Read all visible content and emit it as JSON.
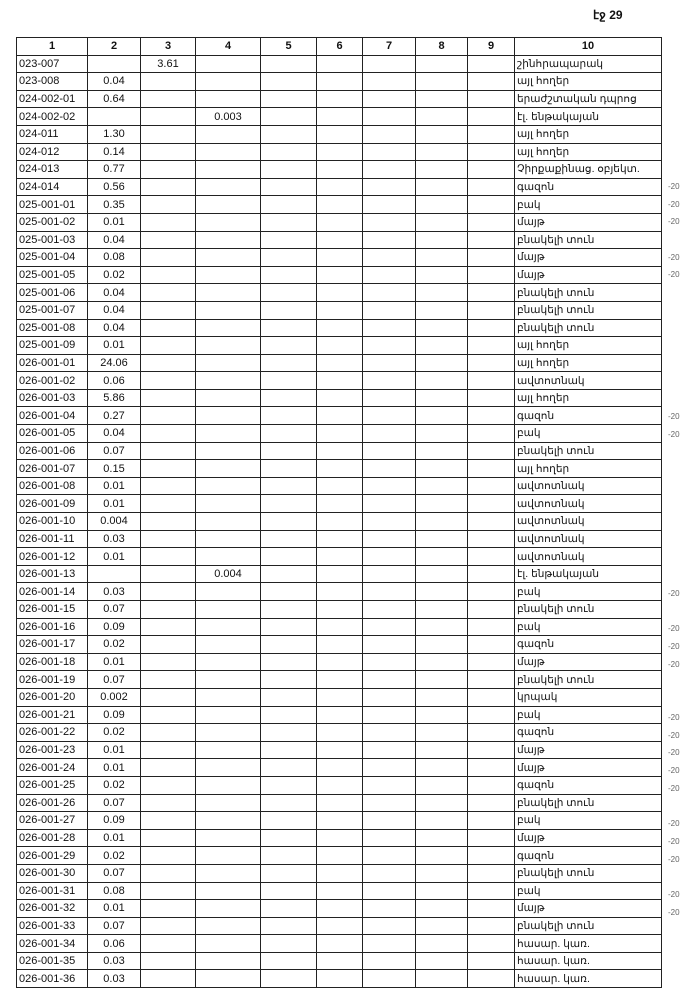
{
  "page_label": "էջ 29",
  "headers": [
    "1",
    "2",
    "3",
    "4",
    "5",
    "6",
    "7",
    "8",
    "9",
    "10"
  ],
  "rows": [
    {
      "c1": "023-007",
      "c2": "",
      "c3": "3.61",
      "c4": "",
      "c10": "շինհրապարակ",
      "note": ""
    },
    {
      "c1": "023-008",
      "c2": "0.04",
      "c3": "",
      "c4": "",
      "c10": "այլ հողեր",
      "note": ""
    },
    {
      "c1": "024-002-01",
      "c2": "0.64",
      "c3": "",
      "c4": "",
      "c10": "երաժշտական դպրոց",
      "note": ""
    },
    {
      "c1": "024-002-02",
      "c2": "",
      "c3": "",
      "c4": "0.003",
      "c10": "էլ. ենթակայան",
      "note": ""
    },
    {
      "c1": "024-011",
      "c2": "1.30",
      "c3": "",
      "c4": "",
      "c10": "այլ հողեր",
      "note": ""
    },
    {
      "c1": "024-012",
      "c2": "0.14",
      "c3": "",
      "c4": "",
      "c10": "այլ հողեր",
      "note": ""
    },
    {
      "c1": "024-013",
      "c2": "0.77",
      "c3": "",
      "c4": "",
      "c10": "Չիրքաքինաց. օբյեկտ.",
      "note": ""
    },
    {
      "c1": "024-014",
      "c2": "0.56",
      "c3": "",
      "c4": "",
      "c10": "գազոն",
      "note": "-20"
    },
    {
      "c1": "025-001-01",
      "c2": "0.35",
      "c3": "",
      "c4": "",
      "c10": "բակ",
      "note": "-20"
    },
    {
      "c1": "025-001-02",
      "c2": "0.01",
      "c3": "",
      "c4": "",
      "c10": "մայթ",
      "note": "-20"
    },
    {
      "c1": "025-001-03",
      "c2": "0.04",
      "c3": "",
      "c4": "",
      "c10": "բնակելի տուն",
      "note": ""
    },
    {
      "c1": "025-001-04",
      "c2": "0.08",
      "c3": "",
      "c4": "",
      "c10": "մայթ",
      "note": "-20"
    },
    {
      "c1": "025-001-05",
      "c2": "0.02",
      "c3": "",
      "c4": "",
      "c10": "մայթ",
      "note": "-20"
    },
    {
      "c1": "025-001-06",
      "c2": "0.04",
      "c3": "",
      "c4": "",
      "c10": "բնակելի տուն",
      "note": ""
    },
    {
      "c1": "025-001-07",
      "c2": "0.04",
      "c3": "",
      "c4": "",
      "c10": "բնակելի տուն",
      "note": ""
    },
    {
      "c1": "025-001-08",
      "c2": "0.04",
      "c3": "",
      "c4": "",
      "c10": "բնակելի տուն",
      "note": ""
    },
    {
      "c1": "025-001-09",
      "c2": "0.01",
      "c3": "",
      "c4": "",
      "c10": "այլ հողեր",
      "note": ""
    },
    {
      "c1": "026-001-01",
      "c2": "24.06",
      "c3": "",
      "c4": "",
      "c10": "այլ հողեր",
      "note": ""
    },
    {
      "c1": "026-001-02",
      "c2": "0.06",
      "c3": "",
      "c4": "",
      "c10": "ավտոտնակ",
      "note": ""
    },
    {
      "c1": "026-001-03",
      "c2": "5.86",
      "c3": "",
      "c4": "",
      "c10": "այլ հողեր",
      "note": ""
    },
    {
      "c1": "026-001-04",
      "c2": "0.27",
      "c3": "",
      "c4": "",
      "c10": "գազոն",
      "note": "-20"
    },
    {
      "c1": "026-001-05",
      "c2": "0.04",
      "c3": "",
      "c4": "",
      "c10": "բակ",
      "note": "-20"
    },
    {
      "c1": "026-001-06",
      "c2": "0.07",
      "c3": "",
      "c4": "",
      "c10": "բնակելի տուն",
      "note": ""
    },
    {
      "c1": "026-001-07",
      "c2": "0.15",
      "c3": "",
      "c4": "",
      "c10": "այլ հողեր",
      "note": ""
    },
    {
      "c1": "026-001-08",
      "c2": "0.01",
      "c3": "",
      "c4": "",
      "c10": "ավտոտնակ",
      "note": ""
    },
    {
      "c1": "026-001-09",
      "c2": "0.01",
      "c3": "",
      "c4": "",
      "c10": "ավտոտնակ",
      "note": ""
    },
    {
      "c1": "026-001-10",
      "c2": "0.004",
      "c3": "",
      "c4": "",
      "c10": "ավտոտնակ",
      "note": ""
    },
    {
      "c1": "026-001-11",
      "c2": "0.03",
      "c3": "",
      "c4": "",
      "c10": "ավտոտնակ",
      "note": ""
    },
    {
      "c1": "026-001-12",
      "c2": "0.01",
      "c3": "",
      "c4": "",
      "c10": "ավտոտնակ",
      "note": ""
    },
    {
      "c1": "026-001-13",
      "c2": "",
      "c3": "",
      "c4": "0.004",
      "c10": "էլ. ենթակայան",
      "note": ""
    },
    {
      "c1": "026-001-14",
      "c2": "0.03",
      "c3": "",
      "c4": "",
      "c10": "բակ",
      "note": "-20"
    },
    {
      "c1": "026-001-15",
      "c2": "0.07",
      "c3": "",
      "c4": "",
      "c10": "բնակելի տուն",
      "note": ""
    },
    {
      "c1": "026-001-16",
      "c2": "0.09",
      "c3": "",
      "c4": "",
      "c10": "բակ",
      "note": "-20"
    },
    {
      "c1": "026-001-17",
      "c2": "0.02",
      "c3": "",
      "c4": "",
      "c10": "գազոն",
      "note": "-20"
    },
    {
      "c1": "026-001-18",
      "c2": "0.01",
      "c3": "",
      "c4": "",
      "c10": "մայթ",
      "note": "-20"
    },
    {
      "c1": "026-001-19",
      "c2": "0.07",
      "c3": "",
      "c4": "",
      "c10": "բնակելի տուն",
      "note": ""
    },
    {
      "c1": "026-001-20",
      "c2": "0.002",
      "c3": "",
      "c4": "",
      "c10": "կրպակ",
      "note": ""
    },
    {
      "c1": "026-001-21",
      "c2": "0.09",
      "c3": "",
      "c4": "",
      "c10": "բակ",
      "note": "-20"
    },
    {
      "c1": "026-001-22",
      "c2": "0.02",
      "c3": "",
      "c4": "",
      "c10": "գազոն",
      "note": "-20"
    },
    {
      "c1": "026-001-23",
      "c2": "0.01",
      "c3": "",
      "c4": "",
      "c10": "մայթ",
      "note": "-20"
    },
    {
      "c1": "026-001-24",
      "c2": "0.01",
      "c3": "",
      "c4": "",
      "c10": "մայթ",
      "note": "-20"
    },
    {
      "c1": "026-001-25",
      "c2": "0.02",
      "c3": "",
      "c4": "",
      "c10": "գազոն",
      "note": "-20"
    },
    {
      "c1": "026-001-26",
      "c2": "0.07",
      "c3": "",
      "c4": "",
      "c10": "բնակելի տուն",
      "note": ""
    },
    {
      "c1": "026-001-27",
      "c2": "0.09",
      "c3": "",
      "c4": "",
      "c10": "բակ",
      "note": "-20"
    },
    {
      "c1": "026-001-28",
      "c2": "0.01",
      "c3": "",
      "c4": "",
      "c10": "մայթ",
      "note": "-20"
    },
    {
      "c1": "026-001-29",
      "c2": "0.02",
      "c3": "",
      "c4": "",
      "c10": "գազոն",
      "note": "-20"
    },
    {
      "c1": "026-001-30",
      "c2": "0.07",
      "c3": "",
      "c4": "",
      "c10": "բնակելի տուն",
      "note": ""
    },
    {
      "c1": "026-001-31",
      "c2": "0.08",
      "c3": "",
      "c4": "",
      "c10": "բակ",
      "note": "-20"
    },
    {
      "c1": "026-001-32",
      "c2": "0.01",
      "c3": "",
      "c4": "",
      "c10": "մայթ",
      "note": "-20"
    },
    {
      "c1": "026-001-33",
      "c2": "0.07",
      "c3": "",
      "c4": "",
      "c10": "բնակելի տուն",
      "note": ""
    },
    {
      "c1": "026-001-34",
      "c2": "0.06",
      "c3": "",
      "c4": "",
      "c10": "հասար. կառ.",
      "note": ""
    },
    {
      "c1": "026-001-35",
      "c2": "0.03",
      "c3": "",
      "c4": "",
      "c10": "հասար. կառ.",
      "note": ""
    },
    {
      "c1": "026-001-36",
      "c2": "0.03",
      "c3": "",
      "c4": "",
      "c10": "հասար. կառ.",
      "note": ""
    }
  ]
}
